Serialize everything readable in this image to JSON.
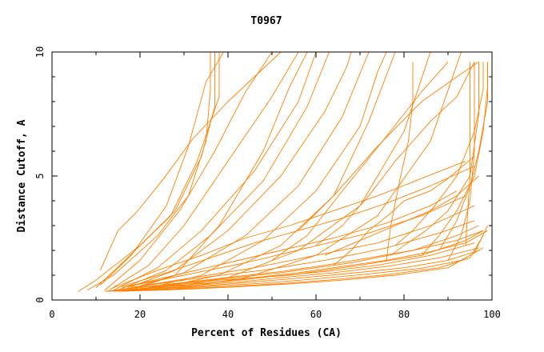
{
  "chart_data": {
    "type": "line",
    "title": "T0967",
    "xlabel": "Percent of Residues (CA)",
    "ylabel": "Distance Cutoff, A",
    "xlim": [
      0,
      100
    ],
    "ylim": [
      0,
      10
    ],
    "x_major_ticks": [
      0,
      20,
      40,
      60,
      80,
      100
    ],
    "x_tick_labels": [
      "0",
      "20",
      "40",
      "60",
      "80",
      "100"
    ],
    "y_major_ticks": [
      0,
      5,
      10
    ],
    "y_tick_labels": [
      "0",
      "5",
      "10"
    ],
    "grid": false,
    "legend": "none",
    "series_color": "#ff8000",
    "series": [
      {
        "x": [
          6,
          10,
          20,
          28,
          34,
          37,
          37
        ],
        "y": [
          0.35,
          0.8,
          2.2,
          3.6,
          5.8,
          7.8,
          10
        ]
      },
      {
        "x": [
          8,
          14,
          24,
          31,
          35,
          36,
          36
        ],
        "y": [
          0.4,
          1.0,
          2.6,
          4.2,
          6.4,
          8.5,
          10
        ]
      },
      {
        "x": [
          10,
          16,
          27,
          33,
          38,
          38
        ],
        "y": [
          0.5,
          1.5,
          3.4,
          5.6,
          8.2,
          10
        ]
      },
      {
        "x": [
          11,
          18,
          26,
          31,
          35,
          39
        ],
        "y": [
          0.6,
          1.8,
          3.8,
          6.2,
          8.8,
          10
        ]
      },
      {
        "x": [
          11,
          15,
          19,
          25,
          32,
          40,
          46,
          52
        ],
        "y": [
          1.2,
          2.8,
          3.5,
          4.8,
          6.5,
          8.0,
          9.0,
          10
        ]
      },
      {
        "x": [
          12,
          20,
          29,
          37,
          44,
          50
        ],
        "y": [
          0.4,
          1.6,
          3.6,
          6.0,
          8.4,
          10
        ]
      },
      {
        "x": [
          13,
          22,
          30,
          40,
          50,
          56
        ],
        "y": [
          0.4,
          1.4,
          3.0,
          5.6,
          8.2,
          10
        ]
      },
      {
        "x": [
          14,
          24,
          34,
          46,
          56,
          60
        ],
        "y": [
          0.4,
          1.3,
          2.8,
          5.2,
          8.0,
          10
        ]
      },
      {
        "x": [
          15,
          26,
          36,
          48,
          58,
          63
        ],
        "y": [
          0.4,
          1.2,
          2.6,
          4.8,
          7.8,
          10
        ]
      },
      {
        "x": [
          16,
          28,
          40,
          52,
          62,
          67,
          68
        ],
        "y": [
          0.4,
          1.2,
          2.8,
          5.0,
          7.6,
          9.4,
          10
        ]
      },
      {
        "x": [
          17,
          30,
          44,
          56,
          66,
          72
        ],
        "y": [
          0.4,
          1.1,
          2.6,
          4.6,
          7.4,
          10
        ]
      },
      {
        "x": [
          18,
          28,
          38,
          48,
          54,
          58
        ],
        "y": [
          0.4,
          1.0,
          3.0,
          6.0,
          8.6,
          10
        ]
      },
      {
        "x": [
          20,
          34,
          48,
          60,
          70,
          74,
          76
        ],
        "y": [
          0.4,
          1.0,
          2.4,
          4.4,
          7.0,
          9.2,
          10
        ]
      },
      {
        "x": [
          22,
          38,
          52,
          64,
          72,
          78
        ],
        "y": [
          0.4,
          1.0,
          2.2,
          4.2,
          7.2,
          10
        ]
      },
      {
        "x": [
          24,
          40,
          56,
          70,
          80,
          86
        ],
        "y": [
          0.4,
          0.9,
          2.0,
          3.8,
          6.8,
          10
        ]
      },
      {
        "x": [
          26,
          44,
          60,
          74,
          86,
          93
        ],
        "y": [
          0.4,
          0.9,
          1.8,
          3.4,
          6.4,
          10
        ]
      },
      {
        "x": [
          14,
          24,
          34,
          44,
          54,
          64,
          74,
          84,
          94
        ],
        "y": [
          0.5,
          1.2,
          1.8,
          2.5,
          3.0,
          3.6,
          4.2,
          4.9,
          5.6
        ]
      },
      {
        "x": [
          15,
          26,
          36,
          46,
          56,
          66,
          76,
          86,
          96
        ],
        "y": [
          0.5,
          1.1,
          1.7,
          2.3,
          2.8,
          3.3,
          3.9,
          4.6,
          5.4
        ]
      },
      {
        "x": [
          16,
          28,
          40,
          52,
          64,
          76,
          86,
          92
        ],
        "y": [
          0.5,
          1.0,
          1.5,
          2.0,
          2.5,
          3.1,
          3.8,
          4.4
        ]
      },
      {
        "x": [
          16,
          30,
          44,
          58,
          72,
          84,
          94
        ],
        "y": [
          0.5,
          1.0,
          1.5,
          2.1,
          2.7,
          3.4,
          4.2
        ]
      },
      {
        "x": [
          18,
          32,
          46,
          60,
          74,
          86,
          96
        ],
        "y": [
          0.5,
          0.9,
          1.3,
          1.8,
          2.3,
          3.0,
          3.8
        ]
      },
      {
        "x": [
          18,
          34,
          48,
          62,
          76,
          88,
          96
        ],
        "y": [
          0.5,
          0.9,
          1.2,
          1.6,
          2.1,
          2.7,
          3.2
        ]
      },
      {
        "x": [
          20,
          36,
          52,
          68,
          82,
          92,
          97
        ],
        "y": [
          0.5,
          0.8,
          1.1,
          1.5,
          2.0,
          2.6,
          3.0
        ]
      },
      {
        "x": [
          22,
          38,
          54,
          70,
          84,
          94,
          98
        ],
        "y": [
          0.5,
          0.8,
          1.0,
          1.4,
          1.8,
          2.4,
          2.8
        ]
      },
      {
        "x": [
          12,
          20,
          30,
          40,
          50,
          62,
          74,
          86,
          96
        ],
        "y": [
          0.35,
          0.45,
          0.6,
          0.75,
          0.95,
          1.15,
          1.4,
          1.8,
          2.3
        ]
      },
      {
        "x": [
          12,
          22,
          32,
          42,
          52,
          64,
          76,
          88,
          97
        ],
        "y": [
          0.35,
          0.45,
          0.58,
          0.72,
          0.9,
          1.1,
          1.35,
          1.7,
          2.1
        ]
      },
      {
        "x": [
          13,
          24,
          34,
          44,
          56,
          68,
          80,
          90,
          97
        ],
        "y": [
          0.35,
          0.45,
          0.56,
          0.7,
          0.88,
          1.08,
          1.3,
          1.6,
          2.0
        ]
      },
      {
        "x": [
          14,
          26,
          36,
          48,
          60,
          72,
          84,
          93,
          98
        ],
        "y": [
          0.35,
          0.44,
          0.55,
          0.68,
          0.85,
          1.05,
          1.28,
          1.6,
          2.1
        ]
      },
      {
        "x": [
          15,
          28,
          40,
          52,
          64,
          76,
          88,
          95,
          98
        ],
        "y": [
          0.35,
          0.44,
          0.54,
          0.66,
          0.82,
          1.02,
          1.3,
          1.7,
          2.6
        ]
      },
      {
        "x": [
          16,
          30,
          42,
          54,
          66,
          78,
          90,
          96,
          99
        ],
        "y": [
          0.35,
          0.43,
          0.53,
          0.65,
          0.8,
          1.0,
          1.3,
          1.9,
          3.0
        ]
      },
      {
        "x": [
          14,
          22,
          32,
          42,
          52,
          62,
          72,
          82,
          92,
          98
        ],
        "y": [
          0.4,
          0.55,
          0.75,
          0.95,
          1.15,
          1.4,
          1.7,
          2.0,
          2.4,
          2.8
        ]
      },
      {
        "x": [
          16,
          26,
          36,
          46,
          56,
          66,
          76,
          86,
          94,
          99
        ],
        "y": [
          0.4,
          0.55,
          0.7,
          0.9,
          1.1,
          1.35,
          1.6,
          1.95,
          2.3,
          2.8
        ]
      },
      {
        "x": [
          77,
          80,
          85,
          90,
          95,
          97,
          97
        ],
        "y": [
          1.8,
          2.2,
          2.8,
          3.6,
          5.0,
          7.5,
          9.6
        ]
      },
      {
        "x": [
          78,
          82,
          87,
          92,
          96,
          98,
          98
        ],
        "y": [
          2.2,
          2.8,
          3.8,
          5.0,
          6.8,
          8.5,
          9.6
        ]
      },
      {
        "x": [
          84,
          88,
          92,
          96,
          98,
          99,
          99
        ],
        "y": [
          1.8,
          2.6,
          3.6,
          5.0,
          6.8,
          8.6,
          9.6
        ]
      },
      {
        "x": [
          88,
          92,
          95,
          97,
          99,
          99
        ],
        "y": [
          2.0,
          3.2,
          4.6,
          6.0,
          8.0,
          9.6
        ]
      },
      {
        "x": [
          90,
          93,
          95,
          96,
          96
        ],
        "y": [
          1.6,
          2.6,
          4.0,
          6.0,
          9.6
        ]
      },
      {
        "x": [
          94,
          95,
          95
        ],
        "y": [
          2.2,
          5.0,
          9.6
        ]
      },
      {
        "x": [
          60,
          66,
          72,
          78,
          86,
          92,
          96
        ],
        "y": [
          2.2,
          3.0,
          4.2,
          5.6,
          7.2,
          8.2,
          9.6
        ]
      },
      {
        "x": [
          56,
          64,
          74,
          84,
          92,
          97
        ],
        "y": [
          2.8,
          4.2,
          6.2,
          8.0,
          9.0,
          9.6
        ]
      },
      {
        "x": [
          50,
          58,
          66,
          76,
          84,
          90
        ],
        "y": [
          1.6,
          2.6,
          4.4,
          6.6,
          8.4,
          9.6
        ]
      },
      {
        "x": [
          76,
          77,
          79,
          81,
          82,
          82
        ],
        "y": [
          1.6,
          3.0,
          4.8,
          6.4,
          8.0,
          9.6
        ]
      },
      {
        "x": [
          64,
          68,
          72,
          77,
          80,
          86,
          90,
          96
        ],
        "y": [
          1.4,
          2.0,
          2.8,
          3.5,
          4.0,
          4.4,
          4.9,
          5.8
        ]
      },
      {
        "x": [
          62,
          70,
          78,
          86,
          92,
          97
        ],
        "y": [
          1.8,
          2.4,
          3.0,
          3.6,
          4.2,
          5.0
        ]
      }
    ]
  }
}
